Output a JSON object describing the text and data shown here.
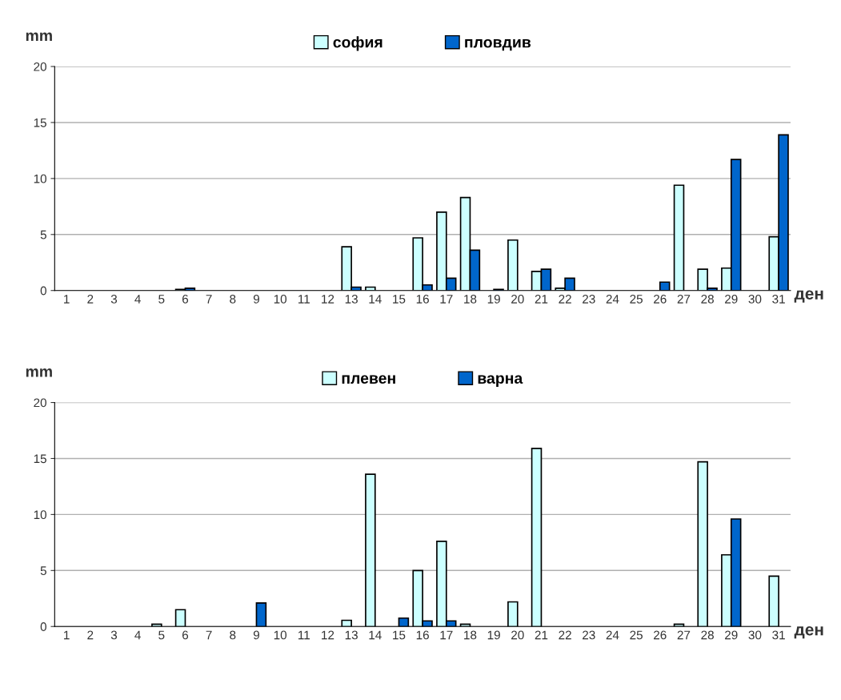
{
  "chart_data": [
    {
      "type": "bar",
      "ylabel": "mm",
      "xlabel": "ден",
      "categories": [
        "1",
        "2",
        "3",
        "4",
        "5",
        "6",
        "7",
        "8",
        "9",
        "10",
        "11",
        "12",
        "13",
        "14",
        "15",
        "16",
        "17",
        "18",
        "19",
        "20",
        "21",
        "22",
        "23",
        "24",
        "25",
        "26",
        "27",
        "28",
        "29",
        "30",
        "31"
      ],
      "ylim": [
        0,
        20
      ],
      "yticks": [
        0,
        5,
        10,
        15,
        20
      ],
      "grid": "y",
      "legend": "top",
      "series": [
        {
          "name": "софия",
          "color": "#ccffff",
          "values": [
            0,
            0,
            0,
            0,
            0,
            0.1,
            0,
            0,
            0,
            0,
            0,
            0,
            3.9,
            0.3,
            0,
            4.7,
            7.0,
            8.3,
            0,
            4.5,
            1.7,
            0.2,
            0,
            0,
            0,
            0,
            9.4,
            1.9,
            2.0,
            0,
            4.8
          ]
        },
        {
          "name": "пловдив",
          "color": "#0066cc",
          "values": [
            0,
            0,
            0,
            0,
            0,
            0.2,
            0,
            0,
            0,
            0,
            0,
            0,
            0.3,
            0,
            0,
            0.5,
            1.1,
            3.6,
            0.1,
            0,
            1.9,
            1.1,
            0,
            0,
            0,
            0.75,
            0,
            0.2,
            11.7,
            0,
            13.9
          ]
        }
      ]
    },
    {
      "type": "bar",
      "ylabel": "mm",
      "xlabel": "ден",
      "categories": [
        "1",
        "2",
        "3",
        "4",
        "5",
        "6",
        "7",
        "8",
        "9",
        "10",
        "11",
        "12",
        "13",
        "14",
        "15",
        "16",
        "17",
        "18",
        "19",
        "20",
        "21",
        "22",
        "23",
        "24",
        "25",
        "26",
        "27",
        "28",
        "29",
        "30",
        "31"
      ],
      "ylim": [
        0,
        20
      ],
      "yticks": [
        0,
        5,
        10,
        15,
        20
      ],
      "grid": "y",
      "legend": "top",
      "series": [
        {
          "name": "плевен",
          "color": "#ccffff",
          "values": [
            0,
            0,
            0,
            0,
            0.2,
            1.5,
            0,
            0,
            0,
            0,
            0,
            0,
            0.55,
            13.6,
            0,
            5.0,
            7.6,
            0.2,
            0,
            2.2,
            15.9,
            0,
            0,
            0,
            0,
            0,
            0.2,
            14.7,
            6.4,
            0,
            4.5
          ]
        },
        {
          "name": "варна",
          "color": "#0066cc",
          "values": [
            0,
            0,
            0,
            0,
            0,
            0,
            0,
            0,
            2.1,
            0,
            0,
            0,
            0,
            0,
            0.75,
            0.5,
            0.5,
            0,
            0,
            0,
            0,
            0,
            0,
            0,
            0,
            0,
            0,
            0,
            9.6,
            0,
            0
          ]
        }
      ]
    }
  ]
}
